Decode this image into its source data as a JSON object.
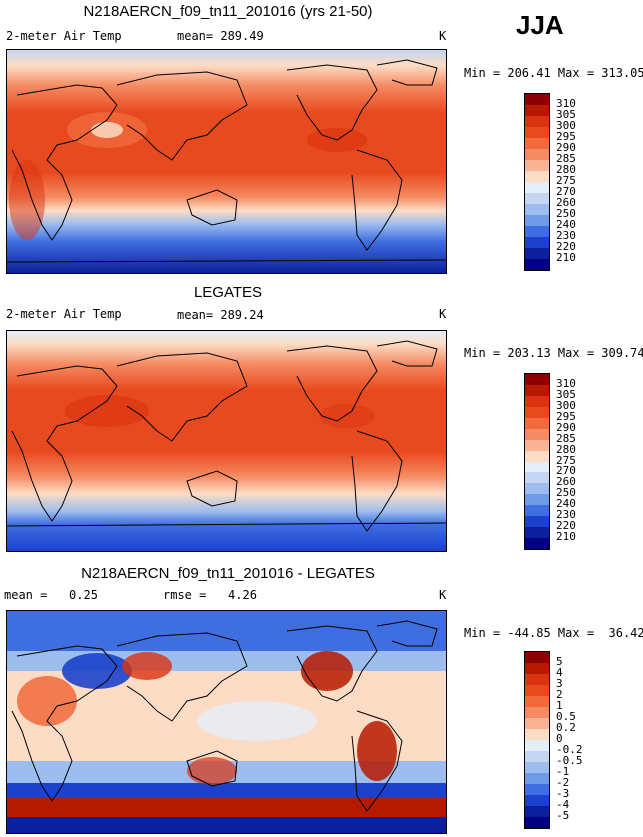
{
  "season": "JJA",
  "units": "K",
  "panels": [
    {
      "title": "N218AERCN_f09_tn11_201016 (yrs 21-50)",
      "left_label": "2-meter Air Temp",
      "center_label": "mean= 289.49",
      "right_label": "K",
      "min_max": "Min = 206.41 Max = 313.05"
    },
    {
      "title": "LEGATES",
      "left_label": "2-meter Air Temp",
      "center_label": "mean= 289.24",
      "right_label": "K",
      "min_max": "Min = 203.13 Max = 309.74"
    },
    {
      "title": "N218AERCN_f09_tn11_201016 - LEGATES",
      "left_label": "mean =   0.25",
      "center_label": "rmse =   4.26",
      "right_label": "K",
      "min_max": "Min = -44.85 Max =  36.42"
    }
  ],
  "colorbars": {
    "absolute": {
      "labels": [
        "310",
        "305",
        "300",
        "295",
        "290",
        "285",
        "280",
        "275",
        "270",
        "260",
        "250",
        "240",
        "230",
        "220",
        "210"
      ],
      "colors": [
        "#8b0000",
        "#b51a00",
        "#d93310",
        "#e84a1f",
        "#f06a3c",
        "#f58b63",
        "#f9b294",
        "#fcdcc4",
        "#e6eefa",
        "#c4d6f2",
        "#9dbdee",
        "#6f9ae6",
        "#3f6ee0",
        "#1c41cc",
        "#0b1f9a",
        "#000080"
      ]
    },
    "difference": {
      "labels": [
        "5",
        "4",
        "3",
        "2",
        "1",
        "0.5",
        "0.2",
        "0",
        "-0.2",
        "-0.5",
        "-1",
        "-2",
        "-3",
        "-4",
        "-5"
      ],
      "colors": [
        "#8b0000",
        "#b51a00",
        "#d93310",
        "#e84a1f",
        "#f06a3c",
        "#f58b63",
        "#f9b294",
        "#fcdcc4",
        "#e6eefa",
        "#c4d6f2",
        "#9dbdee",
        "#6f9ae6",
        "#3f6ee0",
        "#1c41cc",
        "#0b1f9a",
        "#000080"
      ]
    }
  }
}
